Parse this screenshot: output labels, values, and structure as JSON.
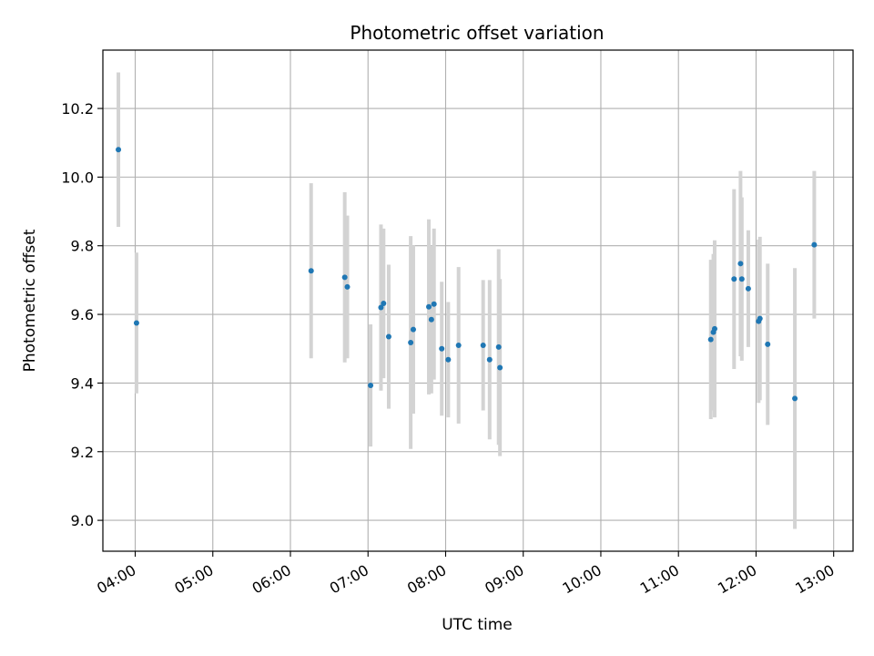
{
  "chart_data": {
    "type": "scatter",
    "title": "Photometric offset variation",
    "xlabel": "UTC time",
    "ylabel": "Photometric offset",
    "x_ticks": [
      "04:00",
      "05:00",
      "06:00",
      "07:00",
      "08:00",
      "09:00",
      "10:00",
      "11:00",
      "12:00",
      "13:00"
    ],
    "y_ticks": [
      "9.0",
      "9.2",
      "9.4",
      "9.6",
      "9.8",
      "10.0",
      "10.2"
    ],
    "xlim": [
      "03:35",
      "13:15"
    ],
    "ylim": [
      8.91,
      10.37
    ],
    "grid": true,
    "colors": {
      "points": "#1f77b4",
      "error_bars": "#d3d3d3",
      "grid": "#b0b0b0"
    },
    "points": [
      {
        "x": "03:47",
        "y": 10.08,
        "yerr": 0.225
      },
      {
        "x": "04:01",
        "y": 9.575,
        "yerr": 0.205
      },
      {
        "x": "06:16",
        "y": 9.727,
        "yerr": 0.255
      },
      {
        "x": "06:42",
        "y": 9.708,
        "yerr": 0.248
      },
      {
        "x": "06:44",
        "y": 9.68,
        "yerr": 0.208
      },
      {
        "x": "07:02",
        "y": 9.393,
        "yerr": 0.178
      },
      {
        "x": "07:10",
        "y": 9.62,
        "yerr": 0.242
      },
      {
        "x": "07:12",
        "y": 9.632,
        "yerr": 0.218
      },
      {
        "x": "07:16",
        "y": 9.535,
        "yerr": 0.21
      },
      {
        "x": "07:33",
        "y": 9.518,
        "yerr": 0.31
      },
      {
        "x": "07:35",
        "y": 9.556,
        "yerr": 0.245
      },
      {
        "x": "07:47",
        "y": 9.622,
        "yerr": 0.255
      },
      {
        "x": "07:49",
        "y": 9.585,
        "yerr": 0.215
      },
      {
        "x": "07:51",
        "y": 9.63,
        "yerr": 0.22
      },
      {
        "x": "07:57",
        "y": 9.5,
        "yerr": 0.195
      },
      {
        "x": "08:02",
        "y": 9.468,
        "yerr": 0.168
      },
      {
        "x": "08:10",
        "y": 9.51,
        "yerr": 0.228
      },
      {
        "x": "08:29",
        "y": 9.51,
        "yerr": 0.19
      },
      {
        "x": "08:34",
        "y": 9.468,
        "yerr": 0.232
      },
      {
        "x": "08:41",
        "y": 9.505,
        "yerr": 0.285
      },
      {
        "x": "08:42",
        "y": 9.445,
        "yerr": 0.258
      },
      {
        "x": "11:25",
        "y": 9.527,
        "yerr": 0.232
      },
      {
        "x": "11:27",
        "y": 9.548,
        "yerr": 0.228
      },
      {
        "x": "11:28",
        "y": 9.558,
        "yerr": 0.258
      },
      {
        "x": "11:43",
        "y": 9.703,
        "yerr": 0.262
      },
      {
        "x": "11:48",
        "y": 9.748,
        "yerr": 0.27
      },
      {
        "x": "11:49",
        "y": 9.703,
        "yerr": 0.238
      },
      {
        "x": "11:54",
        "y": 9.675,
        "yerr": 0.17
      },
      {
        "x": "12:02",
        "y": 9.58,
        "yerr": 0.238
      },
      {
        "x": "12:03",
        "y": 9.588,
        "yerr": 0.238
      },
      {
        "x": "12:09",
        "y": 9.513,
        "yerr": 0.235
      },
      {
        "x": "12:30",
        "y": 9.355,
        "yerr": 0.38
      },
      {
        "x": "12:45",
        "y": 9.803,
        "yerr": 0.215
      }
    ]
  }
}
